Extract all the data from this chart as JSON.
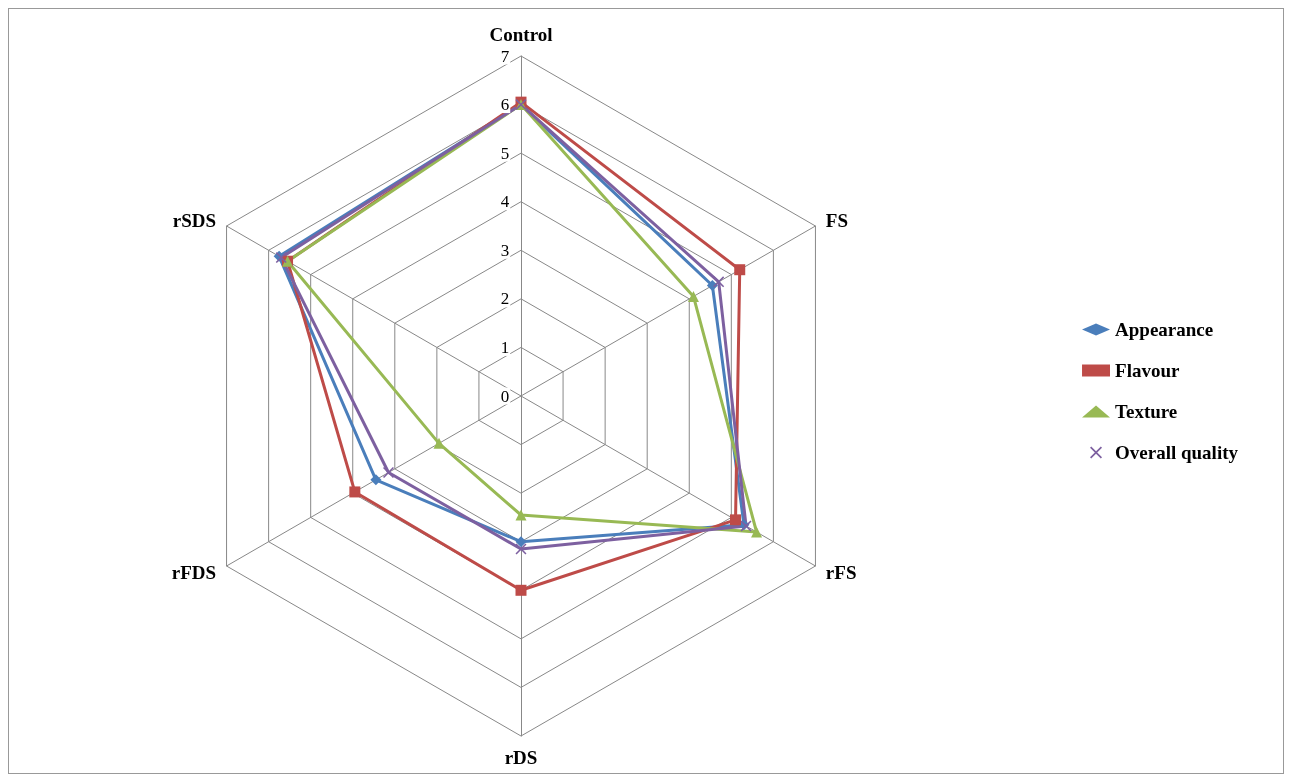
{
  "chart_data": {
    "type": "radar",
    "categories": [
      "Control",
      "FS",
      "rFS",
      "rDS",
      "rFDS",
      "rSDS"
    ],
    "ylim": [
      0,
      7
    ],
    "yticks": [
      0,
      1,
      2,
      3,
      4,
      5,
      6,
      7
    ],
    "grid": true,
    "legend": "right",
    "line_style": "solid",
    "series": [
      {
        "name": "Appearance",
        "color": "#4a7ebb",
        "marker": "diamond",
        "values": [
          6.0,
          4.55,
          5.3,
          3.0,
          3.45,
          5.75
        ]
      },
      {
        "name": "Flavour",
        "color": "#be4b48",
        "marker": "square",
        "values": [
          6.05,
          5.2,
          5.1,
          4.0,
          3.95,
          5.55
        ]
      },
      {
        "name": "Texture",
        "color": "#98b954",
        "marker": "triangle",
        "values": [
          6.0,
          4.1,
          5.6,
          2.45,
          1.95,
          5.55
        ]
      },
      {
        "name": "Overall quality",
        "color": "#7d60a0",
        "marker": "cross",
        "values": [
          6.0,
          4.7,
          5.35,
          3.15,
          3.15,
          5.7
        ]
      }
    ]
  }
}
